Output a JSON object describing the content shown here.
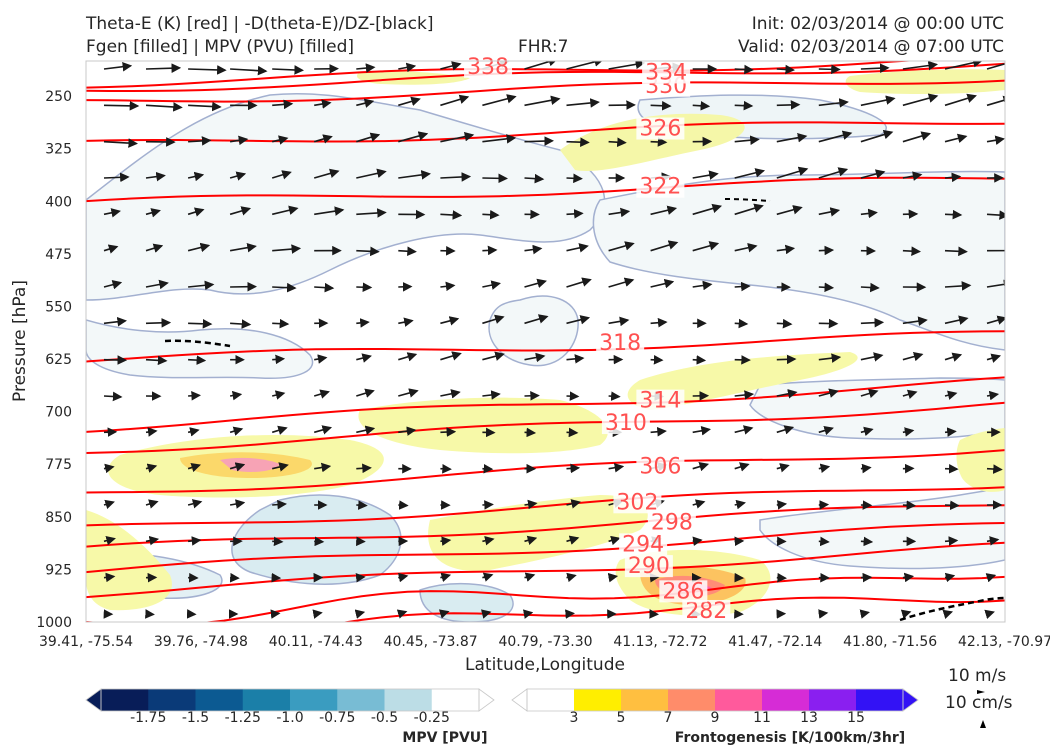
{
  "header": {
    "title_line1": "Theta-E (K) [red] | -D(theta-E)/DZ-[black]",
    "title_line2": "Fgen [filled] | MPV (PVU) [filled]",
    "fhr": "FHR:7",
    "init": "Init: 02/03/2014 @ 00:00 UTC",
    "valid": "Valid: 02/03/2014 @ 07:00 UTC"
  },
  "chart_data": {
    "type": "cross-section",
    "ylabel": "Pressure [hPa]",
    "xlabel": "Latitude,Longitude",
    "yticks": [
      "250",
      "325",
      "400",
      "475",
      "550",
      "625",
      "700",
      "775",
      "850",
      "925",
      "1000"
    ],
    "ylim": [
      200,
      1000
    ],
    "y_inverted": true,
    "xticks": [
      "39.41, -75.54",
      "39.76, -74.98",
      "40.11, -74.43",
      "40.45, -73.87",
      "40.79, -73.30",
      "41.13, -72.72",
      "41.47, -72.14",
      "41.80, -71.56",
      "42.13, -70.97"
    ],
    "theta_e_contours": {
      "color": "#ff0000",
      "levels": [
        "282",
        "286",
        "290",
        "294",
        "298",
        "302",
        "306",
        "310",
        "314",
        "318",
        "322",
        "326",
        "330",
        "334",
        "338"
      ],
      "label_points": [
        {
          "label": "282",
          "x": 5.4,
          "p": 990
        },
        {
          "label": "286",
          "x": 5.2,
          "p": 962
        },
        {
          "label": "290",
          "x": 4.9,
          "p": 926
        },
        {
          "label": "294",
          "x": 4.85,
          "p": 895
        },
        {
          "label": "298",
          "x": 5.1,
          "p": 864
        },
        {
          "label": "302",
          "x": 4.8,
          "p": 835
        },
        {
          "label": "306",
          "x": 5.0,
          "p": 784
        },
        {
          "label": "310",
          "x": 4.7,
          "p": 722
        },
        {
          "label": "314",
          "x": 5.0,
          "p": 690
        },
        {
          "label": "318",
          "x": 4.65,
          "p": 608
        },
        {
          "label": "322",
          "x": 5.0,
          "p": 385
        },
        {
          "label": "326",
          "x": 5.0,
          "p": 302
        },
        {
          "label": "330",
          "x": 5.05,
          "p": 241
        },
        {
          "label": "334",
          "x": 5.05,
          "p": 222
        },
        {
          "label": "338",
          "x": 3.5,
          "p": 214
        }
      ]
    },
    "reference_vectors": [
      "10 m/s",
      "10 cm/s"
    ],
    "colorbars": [
      {
        "title": "MPV [PVU]",
        "ticks": [
          "-1.75",
          "-1.5",
          "-1.25",
          "-1.0",
          "-0.75",
          "-0.5",
          "-0.25"
        ],
        "colors": [
          "#081d58",
          "#0a3a78",
          "#0c5a92",
          "#1b7fa8",
          "#3a9cc0",
          "#78bcd4",
          "#bcdde6",
          "#ffffff"
        ]
      },
      {
        "title": "Frontogenesis [K/100km/3hr]",
        "ticks": [
          "3",
          "5",
          "7",
          "9",
          "11",
          "13",
          "15"
        ],
        "colors": [
          "#ffffff",
          "#ffee00",
          "#ffbf40",
          "#ff8c6a",
          "#ff5a9c",
          "#d62cd6",
          "#8a1ff0",
          "#3312f5"
        ]
      }
    ]
  }
}
